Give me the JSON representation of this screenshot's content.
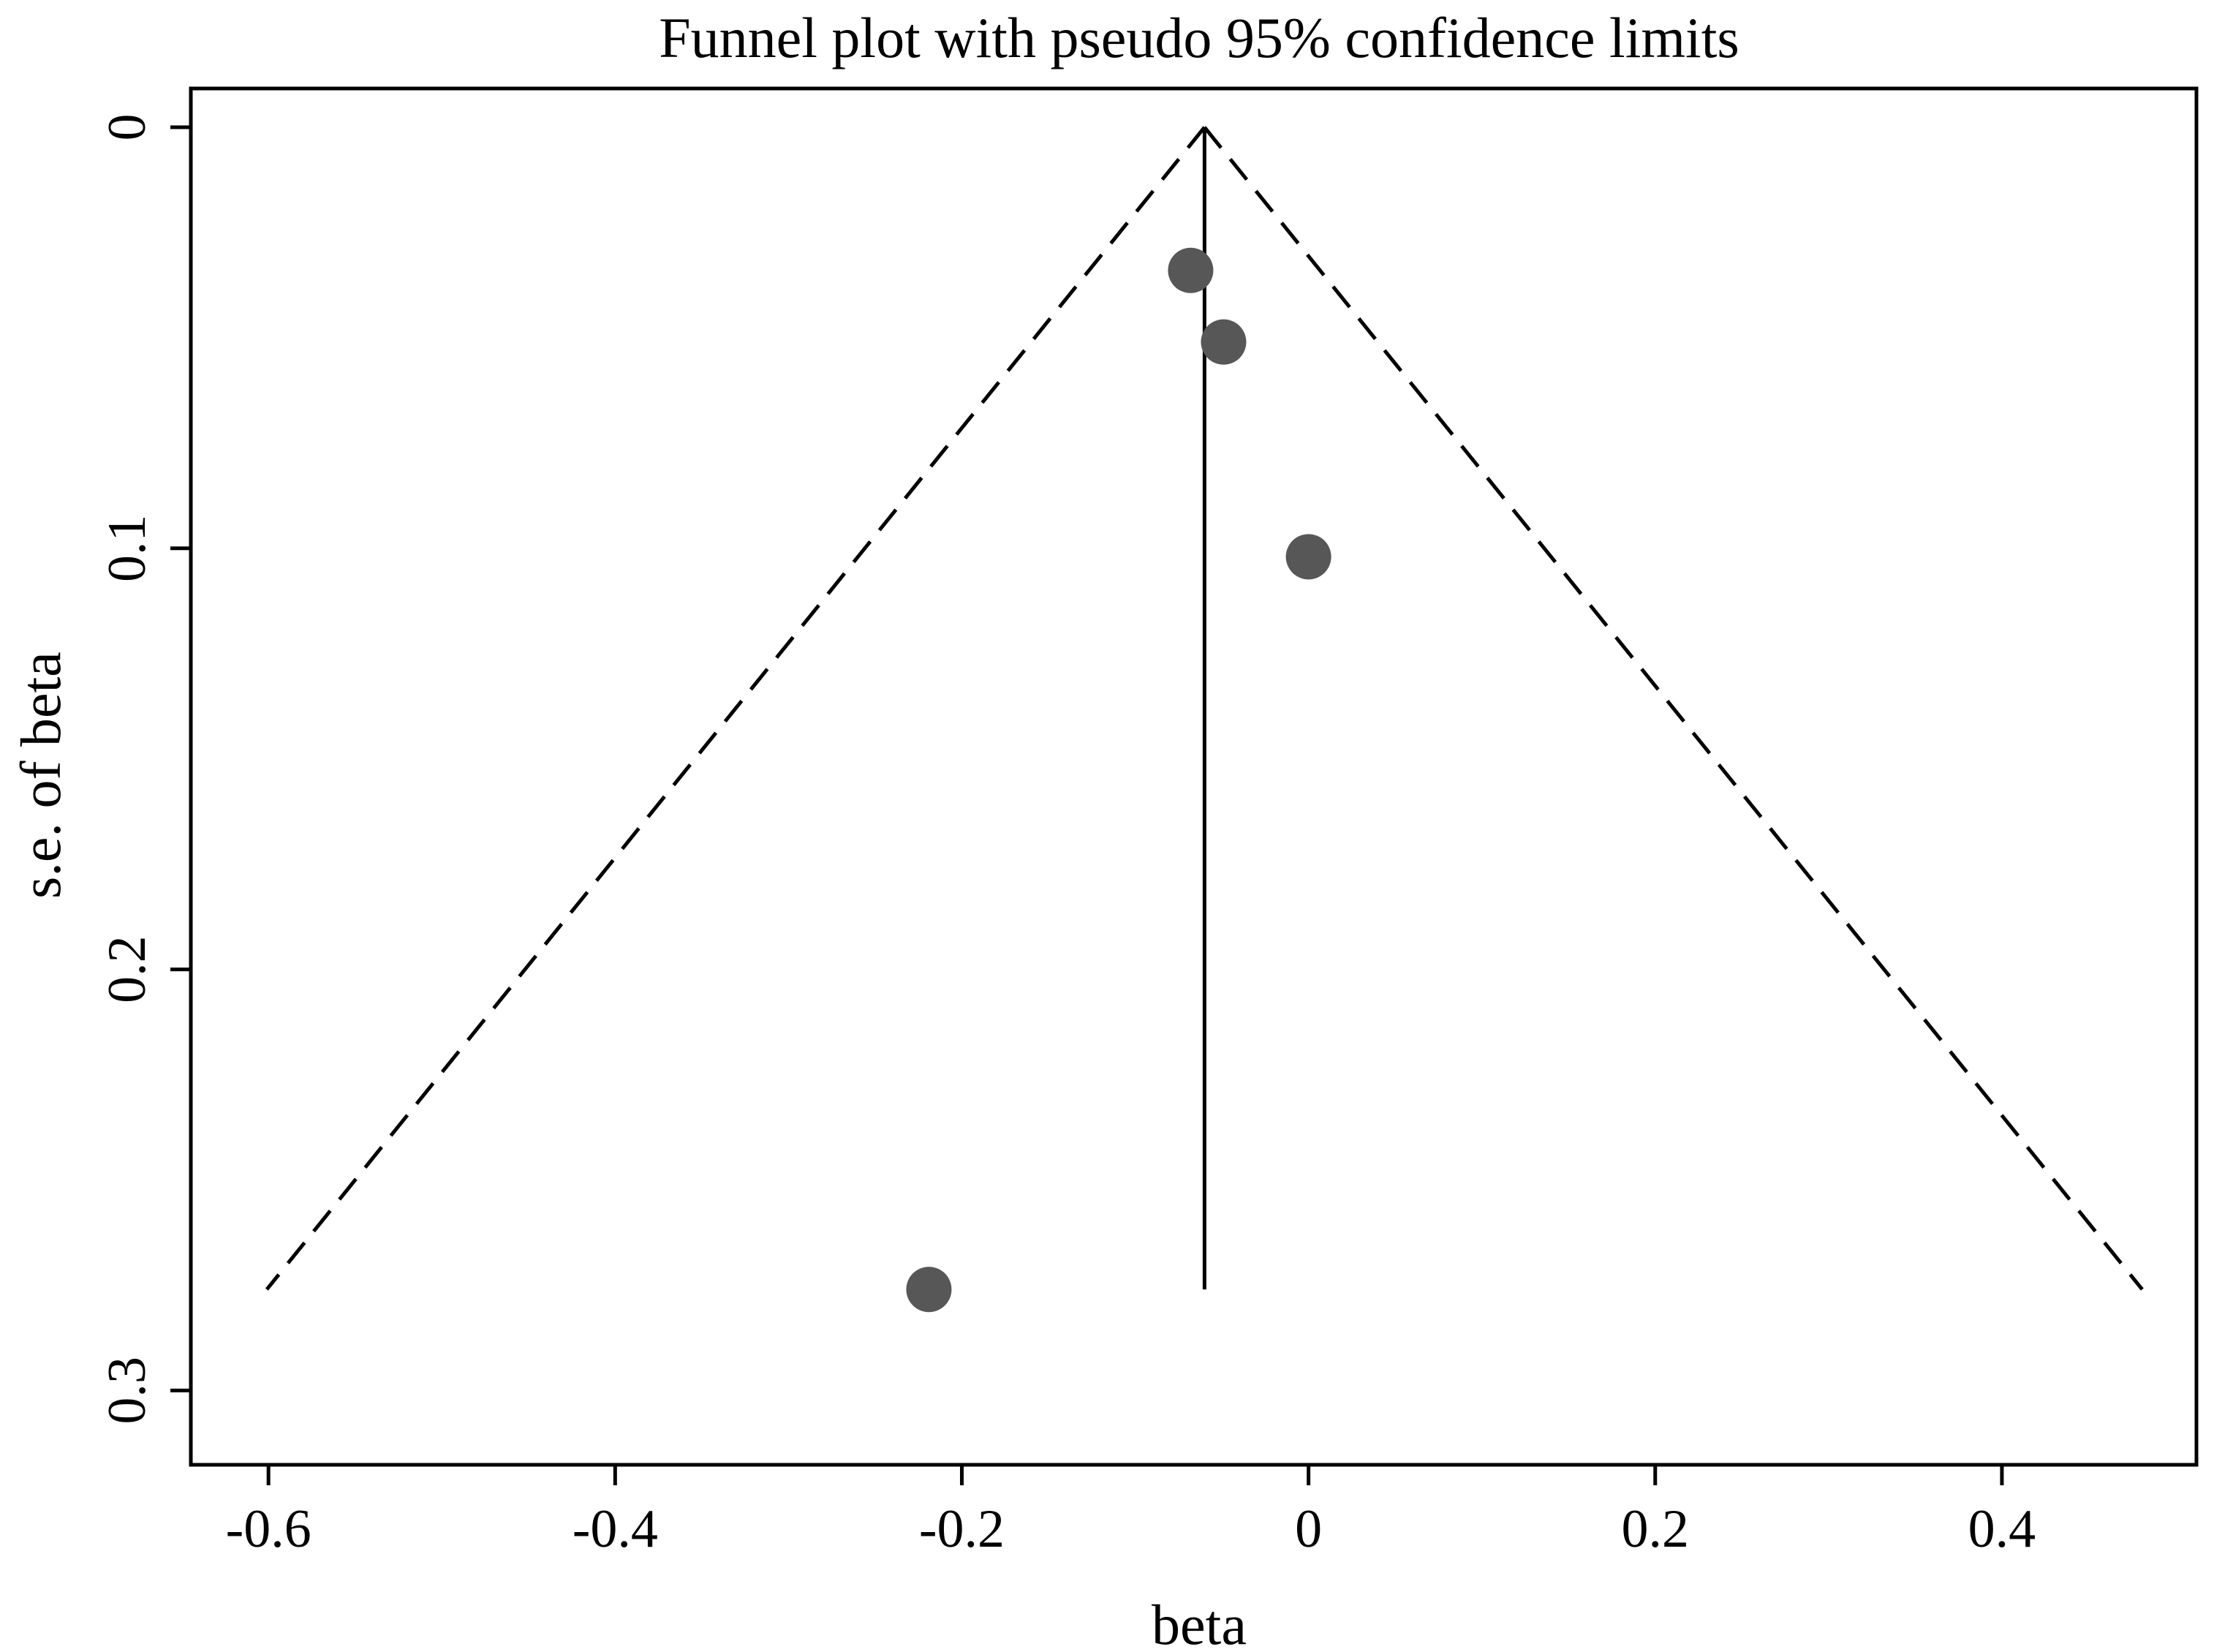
{
  "chart_data": {
    "type": "scatter",
    "title": "Funnel plot with pseudo 95% confidence limits",
    "xlabel": "beta",
    "ylabel": "s.e. of beta",
    "xlim": [
      -0.622,
      0.5
    ],
    "ylim": [
      0,
      0.31
    ],
    "y_inverted": true,
    "x_ticks": [
      -0.6,
      -0.4,
      -0.2,
      0,
      0.2,
      0.4
    ],
    "x_tick_labels": [
      "-0.6",
      "-0.4",
      "-0.2",
      "0",
      "0.2",
      "0.4"
    ],
    "y_ticks": [
      0,
      0.1,
      0.2,
      0.3
    ],
    "y_tick_labels": [
      "0",
      "0.1",
      "0.2",
      "0.3"
    ],
    "pooled_estimate": -0.06,
    "max_se": 0.276,
    "ci_z": 1.96,
    "points": [
      {
        "beta": -0.068,
        "se": 0.034
      },
      {
        "beta": -0.049,
        "se": 0.051
      },
      {
        "beta": 0.0,
        "se": 0.102
      },
      {
        "beta": -0.219,
        "se": 0.276
      }
    ],
    "grid": false,
    "colors": {
      "marker": "#575757",
      "line": "#000000"
    }
  }
}
